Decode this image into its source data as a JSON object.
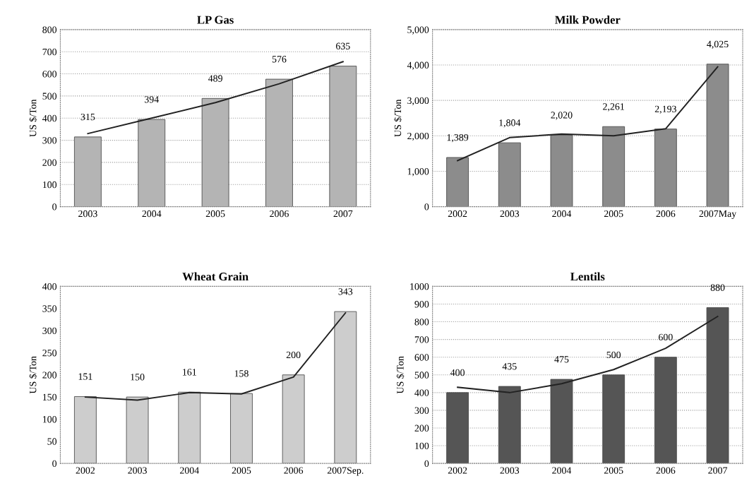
{
  "chart_data": [
    {
      "type": "bar",
      "title": "LP Gas",
      "ylabel": "US $/Ton",
      "categories": [
        "2003",
        "2004",
        "2005",
        "2006",
        "2007"
      ],
      "series": [
        {
          "color": "#b4b4b4",
          "values": [
            315,
            394,
            489,
            576,
            635
          ],
          "value_labels": [
            "315",
            "394",
            "489",
            "576",
            "635"
          ]
        },
        {
          "type": "line",
          "color": "#222222",
          "values": [
            330,
            400,
            470,
            555,
            655
          ]
        }
      ],
      "ylim": [
        0,
        800
      ],
      "yticks": [
        0,
        100,
        200,
        300,
        400,
        500,
        600,
        700,
        800
      ],
      "grid": "y",
      "marker": "none",
      "line_style": "solid"
    },
    {
      "type": "bar",
      "title": "Milk Powder",
      "ylabel": "US $/Ton",
      "categories": [
        "2002",
        "2003",
        "2004",
        "2005",
        "2006",
        "2007May"
      ],
      "series": [
        {
          "color": "#8c8c8c",
          "values": [
            1389,
            1804,
            2020,
            2261,
            2193,
            4025
          ],
          "value_labels": [
            "1,389",
            "1,804",
            "2,020",
            "2,261",
            "2,193",
            "4,025"
          ]
        },
        {
          "type": "line",
          "color": "#222222",
          "values": [
            1300,
            1950,
            2050,
            2000,
            2200,
            3950
          ]
        }
      ],
      "ylim": [
        0,
        5000
      ],
      "yticks": [
        0,
        {
          "value": 1000,
          "label": "1,000"
        },
        {
          "value": 2000,
          "label": "2,000"
        },
        {
          "value": 3000,
          "label": "3,000"
        },
        {
          "value": 4000,
          "label": "4,000"
        },
        {
          "value": 5000,
          "label": "5,000"
        }
      ],
      "grid": "y",
      "marker": "none",
      "line_style": "solid"
    },
    {
      "type": "bar",
      "title": "Wheat Grain",
      "ylabel": "US $/Ton",
      "categories": [
        "2002",
        "2003",
        "2004",
        "2005",
        "2006",
        "2007Sep."
      ],
      "series": [
        {
          "color": "#cdcdcd",
          "values": [
            151,
            150,
            161,
            158,
            200,
            343
          ],
          "value_labels": [
            "151",
            "150",
            "161",
            "158",
            "200",
            "343"
          ]
        },
        {
          "type": "line",
          "color": "#222222",
          "values": [
            150,
            143,
            160,
            157,
            195,
            340
          ]
        }
      ],
      "ylim": [
        0,
        400
      ],
      "yticks": [
        0,
        50,
        100,
        150,
        200,
        250,
        300,
        350,
        400
      ],
      "grid": false,
      "marker": "none",
      "line_style": "solid"
    },
    {
      "type": "bar",
      "title": "Lentils",
      "ylabel": "US $/Ton",
      "categories": [
        "2002",
        "2003",
        "2004",
        "2005",
        "2006",
        "2007"
      ],
      "series": [
        {
          "color": "#555555",
          "values": [
            400,
            435,
            475,
            500,
            600,
            880
          ],
          "value_labels": [
            "400",
            "435",
            "475",
            "500",
            "600",
            "880"
          ]
        },
        {
          "type": "line",
          "color": "#222222",
          "values": [
            430,
            400,
            450,
            530,
            650,
            830
          ]
        }
      ],
      "ylim": [
        0,
        1000
      ],
      "yticks": [
        0,
        100,
        200,
        300,
        400,
        500,
        600,
        700,
        800,
        900,
        1000
      ],
      "grid": "y",
      "marker": "none",
      "line_style": "solid"
    }
  ]
}
